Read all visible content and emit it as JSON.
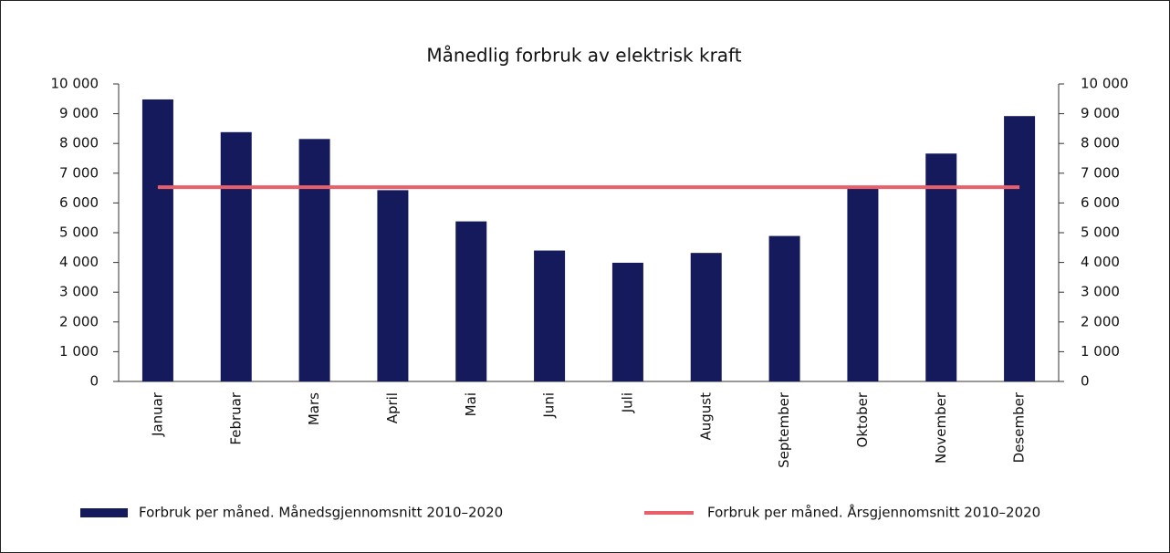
{
  "chart_data": {
    "type": "bar",
    "title": "Månedlig forbruk av elektrisk kraft",
    "categories": [
      "Januar",
      "Februar",
      "Mars",
      "April",
      "Mai",
      "Juni",
      "Juli",
      "August",
      "September",
      "Oktober",
      "November",
      "Desember"
    ],
    "series": [
      {
        "name": "Forbruk per måned. Månedsgjennomsnitt 2010–2020",
        "type": "bar",
        "color": "#141a5c",
        "values": [
          9480,
          8380,
          8150,
          6430,
          5380,
          4400,
          3990,
          4320,
          4890,
          6540,
          7660,
          8920
        ]
      },
      {
        "name": "Forbruk per måned. Årsgjennomsnitt 2010–2020",
        "type": "line",
        "axis": "y2",
        "color": "#e8606a",
        "values": [
          6530,
          6530,
          6530,
          6530,
          6530,
          6530,
          6530,
          6530,
          6530,
          6530,
          6530,
          6530
        ]
      }
    ],
    "ylim": [
      0,
      10000
    ],
    "yticks": [
      0,
      {
        "value": 1000,
        "label": "1 000"
      },
      {
        "value": 2000,
        "label": "2 000"
      },
      {
        "value": 3000,
        "label": "3 000"
      },
      {
        "value": 4000,
        "label": "4 000"
      },
      {
        "value": 5000,
        "label": "5 000"
      },
      {
        "value": 6000,
        "label": "6 000"
      },
      {
        "value": 7000,
        "label": "7 000"
      },
      {
        "value": 8000,
        "label": "8 000"
      },
      {
        "value": 9000,
        "label": "9 000"
      },
      {
        "value": 10000,
        "label": "10 000"
      }
    ],
    "y2lim": [
      0,
      10000
    ],
    "y2ticks": [
      0,
      {
        "value": 1000,
        "label": "1 000"
      },
      {
        "value": 2000,
        "label": "2 000"
      },
      {
        "value": 3000,
        "label": "3 000"
      },
      {
        "value": 4000,
        "label": "4 000"
      },
      {
        "value": 5000,
        "label": "5 000"
      },
      {
        "value": 6000,
        "label": "6 000"
      },
      {
        "value": 7000,
        "label": "7 000"
      },
      {
        "value": 8000,
        "label": "8 000"
      },
      {
        "value": 9000,
        "label": "9 000"
      },
      {
        "value": 10000,
        "label": "10 000"
      }
    ],
    "grid": false,
    "legend": "bottom"
  }
}
